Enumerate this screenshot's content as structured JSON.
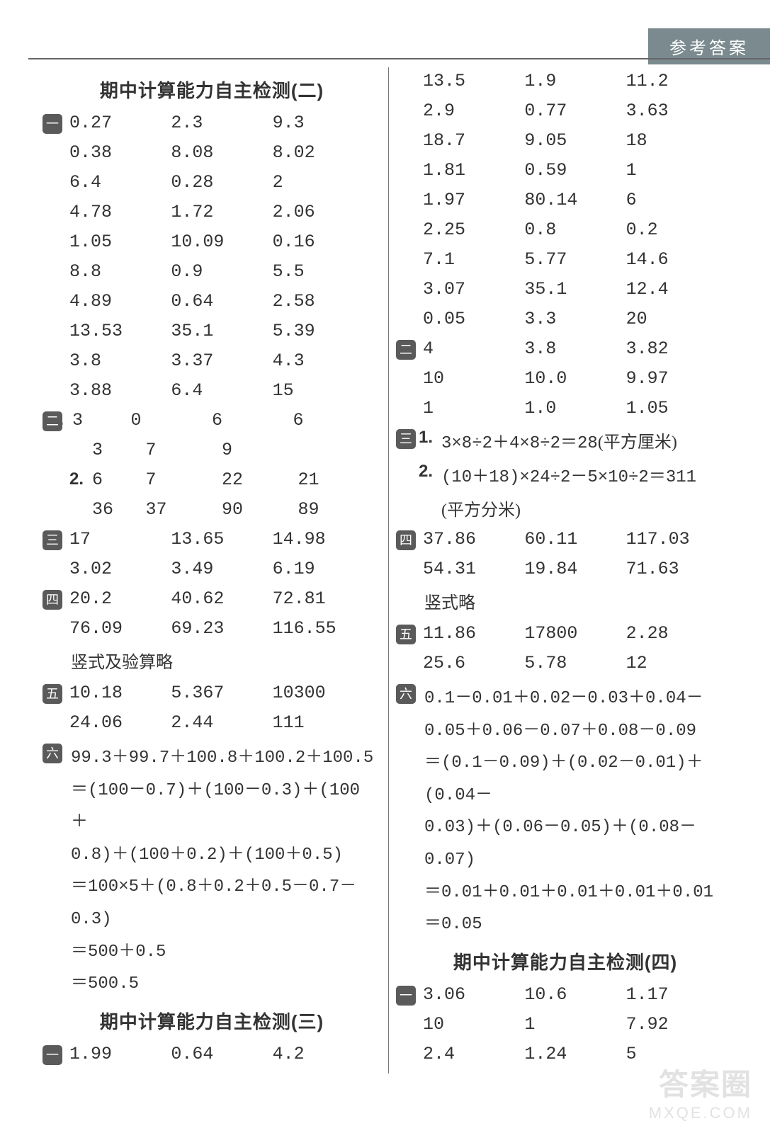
{
  "header_tab": "参考答案",
  "colors": {
    "badge_bg": "#5a5a5a",
    "text": "#333333",
    "tab_bg": "#7a8a8f"
  },
  "left": {
    "title1": "期中计算能力自主检测(二)",
    "s1": {
      "badge": "一",
      "rows": [
        [
          "0.27",
          "2.3",
          "9.3"
        ],
        [
          "0.38",
          "8.08",
          "8.02"
        ],
        [
          "6.4",
          "0.28",
          "2"
        ],
        [
          "4.78",
          "1.72",
          "2.06"
        ],
        [
          "1.05",
          "10.09",
          "0.16"
        ],
        [
          "8.8",
          "0.9",
          "5.5"
        ],
        [
          "4.89",
          "0.64",
          "2.58"
        ],
        [
          "13.53",
          "35.1",
          "5.39"
        ],
        [
          "3.8",
          "3.37",
          "4.3"
        ],
        [
          "3.88",
          "6.4",
          "15"
        ]
      ]
    },
    "s2": {
      "badge": "二",
      "p1_label": "1.",
      "p1_rows": [
        [
          "3",
          "0",
          "6",
          "6"
        ],
        [
          "3",
          "7",
          "9",
          ""
        ]
      ],
      "p2_label": "2.",
      "p2_rows": [
        [
          "6",
          "7",
          "22",
          "21"
        ],
        [
          "36",
          "37",
          "90",
          "89"
        ]
      ]
    },
    "s3": {
      "badge": "三",
      "rows": [
        [
          "17",
          "13.65",
          "14.98"
        ],
        [
          "3.02",
          "3.49",
          "6.19"
        ]
      ]
    },
    "s4": {
      "badge": "四",
      "rows": [
        [
          "20.2",
          "40.62",
          "72.81"
        ],
        [
          "76.09",
          "69.23",
          "116.55"
        ]
      ],
      "note": "竖式及验算略"
    },
    "s5": {
      "badge": "五",
      "rows": [
        [
          "10.18",
          "5.367",
          "10300"
        ],
        [
          "24.06",
          "2.44",
          "111"
        ]
      ]
    },
    "s6": {
      "badge": "六",
      "lines": [
        "  99.3＋99.7＋100.8＋100.2＋100.5",
        "＝(100－0.7)＋(100－0.3)＋(100＋",
        "  0.8)＋(100＋0.2)＋(100＋0.5)",
        "＝100×5＋(0.8＋0.2＋0.5－0.7－0.3)",
        "＝500＋0.5",
        "＝500.5"
      ]
    },
    "title2": "期中计算能力自主检测(三)",
    "s7": {
      "badge": "一",
      "rows": [
        [
          "1.99",
          "0.64",
          "4.2"
        ]
      ]
    }
  },
  "right": {
    "s1_cont_rows": [
      [
        "13.5",
        "1.9",
        "11.2"
      ],
      [
        "2.9",
        "0.77",
        "3.63"
      ],
      [
        "18.7",
        "9.05",
        "18"
      ],
      [
        "1.81",
        "0.59",
        "1"
      ],
      [
        "1.97",
        "80.14",
        "6"
      ],
      [
        "2.25",
        "0.8",
        "0.2"
      ],
      [
        "7.1",
        "5.77",
        "14.6"
      ],
      [
        "3.07",
        "35.1",
        "12.4"
      ],
      [
        "0.05",
        "3.3",
        "20"
      ]
    ],
    "s2": {
      "badge": "二",
      "rows": [
        [
          "4",
          "3.8",
          "3.82"
        ],
        [
          "10",
          "10.0",
          "9.97"
        ],
        [
          "1",
          "1.0",
          "1.05"
        ]
      ]
    },
    "s3": {
      "badge": "三",
      "p1_label": "1.",
      "p1_text": "3×8÷2＋4×8÷2＝28",
      "p1_unit": "(平方厘米)",
      "p2_label": "2.",
      "p2_text": "(10＋18)×24÷2－5×10÷2＝311",
      "p2_unit": "(平方分米)"
    },
    "s4": {
      "badge": "四",
      "rows": [
        [
          "37.86",
          "60.11",
          "117.03"
        ],
        [
          "54.31",
          "19.84",
          "71.63"
        ]
      ],
      "note": "竖式略"
    },
    "s5": {
      "badge": "五",
      "rows": [
        [
          "11.86",
          "17800",
          "2.28"
        ],
        [
          "25.6",
          "5.78",
          "12"
        ]
      ]
    },
    "s6": {
      "badge": "六",
      "lines": [
        "  0.1－0.01＋0.02－0.03＋0.04－",
        "  0.05＋0.06－0.07＋0.08－0.09",
        "＝(0.1－0.09)＋(0.02－0.01)＋(0.04－",
        "  0.03)＋(0.06－0.05)＋(0.08－0.07)",
        "＝0.01＋0.01＋0.01＋0.01＋0.01",
        "＝0.05"
      ]
    },
    "title3": "期中计算能力自主检测(四)",
    "s7": {
      "badge": "一",
      "rows": [
        [
          "3.06",
          "10.6",
          "1.17"
        ],
        [
          "10",
          "1",
          "7.92"
        ],
        [
          "2.4",
          "1.24",
          "5"
        ]
      ]
    }
  },
  "watermark": {
    "l1": "答案圈",
    "l2": "MXQE.COM"
  }
}
